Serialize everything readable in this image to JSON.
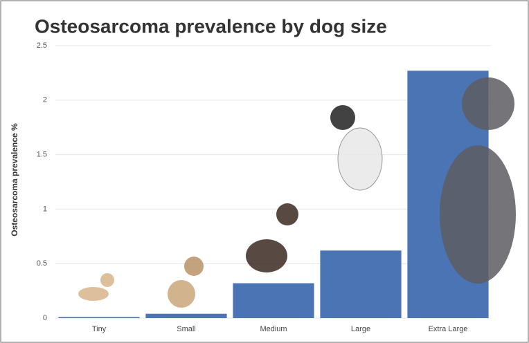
{
  "chart_data": {
    "type": "bar",
    "title": "Osteosarcoma prevalence by dog size",
    "y_label": "Osteosarcoma prevalence %",
    "categories": [
      "Tiny",
      "Small",
      "Medium",
      "Large",
      "Extra Large"
    ],
    "values": [
      0.01,
      0.04,
      0.32,
      0.62,
      2.27
    ],
    "color": "#4b74b5",
    "ylim": [
      0,
      2.5
    ],
    "yticks": [
      0,
      0.5,
      1,
      1.5,
      2,
      2.5
    ],
    "grid": true
  }
}
